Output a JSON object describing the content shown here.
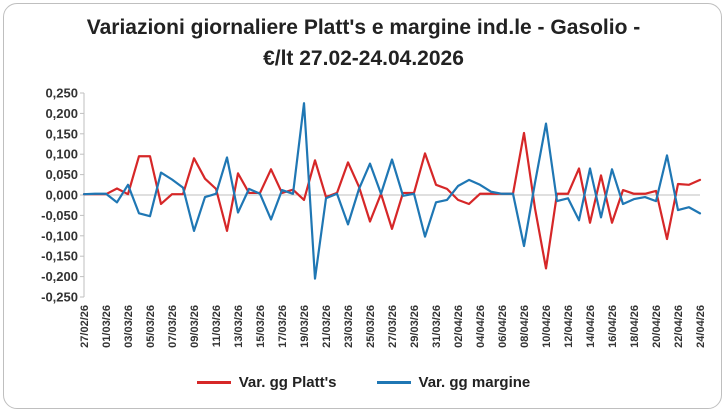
{
  "chart_data": {
    "type": "line",
    "title_line1": "Variazioni giornaliere Platt's e margine ind.le - Gasolio -",
    "title_line2": "€/lt 27.02-24.04.2026",
    "xlabel": "",
    "ylabel": "",
    "ylim": [
      -0.25,
      0.25
    ],
    "yticks": [
      "0,250",
      "0,200",
      "0,150",
      "0,100",
      "0,050",
      "0,000",
      "-0,050",
      "-0,100",
      "-0,150",
      "-0,200",
      "-0,250"
    ],
    "ytick_values": [
      0.25,
      0.2,
      0.15,
      0.1,
      0.05,
      0,
      -0.05,
      -0.1,
      -0.15,
      -0.2,
      -0.25
    ],
    "grid": false,
    "legend": "bottom",
    "x_tick_labels": [
      "27/02/26",
      "01/03/26",
      "03/03/26",
      "05/03/26",
      "07/03/26",
      "09/03/26",
      "11/03/26",
      "13/03/26",
      "15/03/26",
      "17/03/26",
      "19/03/26",
      "21/03/26",
      "23/03/26",
      "25/03/26",
      "27/03/26",
      "29/03/26",
      "31/03/26",
      "02/04/26",
      "04/04/26",
      "06/04/26",
      "08/04/26",
      "10/04/26",
      "12/04/26",
      "14/04/26",
      "16/04/26",
      "18/04/26",
      "20/04/26",
      "22/04/26",
      "24/04/26"
    ],
    "series": [
      {
        "name": "Var. gg Platt's",
        "color": "#d62728",
        "values": [
          0.002,
          0.002,
          0.002,
          0.016,
          0.002,
          0.095,
          0.095,
          -0.022,
          0.002,
          0.002,
          0.09,
          0.04,
          0.015,
          -0.088,
          0.053,
          0.005,
          0.005,
          0.063,
          0.005,
          0.013,
          -0.012,
          0.085,
          -0.005,
          0.005,
          0.08,
          0.02,
          -0.065,
          0.003,
          -0.083,
          0.005,
          0.005,
          0.102,
          0.025,
          0.015,
          -0.012,
          -0.022,
          0.003,
          0.003,
          0.003,
          0.003,
          0.152,
          -0.033,
          -0.18,
          0.003,
          0.003,
          0.065,
          -0.068,
          0.048,
          -0.068,
          0.012,
          0.003,
          0.003,
          0.01,
          -0.108,
          0.027,
          0.025,
          0.037
        ]
      },
      {
        "name": "Var. gg margine",
        "color": "#1f77b4",
        "values": [
          0.002,
          0.003,
          0.003,
          -0.018,
          0.025,
          -0.045,
          -0.052,
          0.055,
          0.038,
          0.018,
          -0.088,
          -0.005,
          0.003,
          0.092,
          -0.043,
          0.015,
          0.003,
          -0.06,
          0.012,
          0.003,
          0.225,
          -0.205,
          -0.008,
          0.003,
          -0.072,
          0.015,
          0.077,
          0.003,
          0.087,
          -0.002,
          0.003,
          -0.102,
          -0.018,
          -0.012,
          0.022,
          0.037,
          0.025,
          0.008,
          0.003,
          0.003,
          -0.125,
          0.03,
          0.175,
          -0.015,
          -0.008,
          -0.062,
          0.065,
          -0.055,
          0.063,
          -0.022,
          -0.01,
          -0.005,
          -0.015,
          0.097,
          -0.037,
          -0.03,
          -0.045
        ]
      }
    ]
  }
}
